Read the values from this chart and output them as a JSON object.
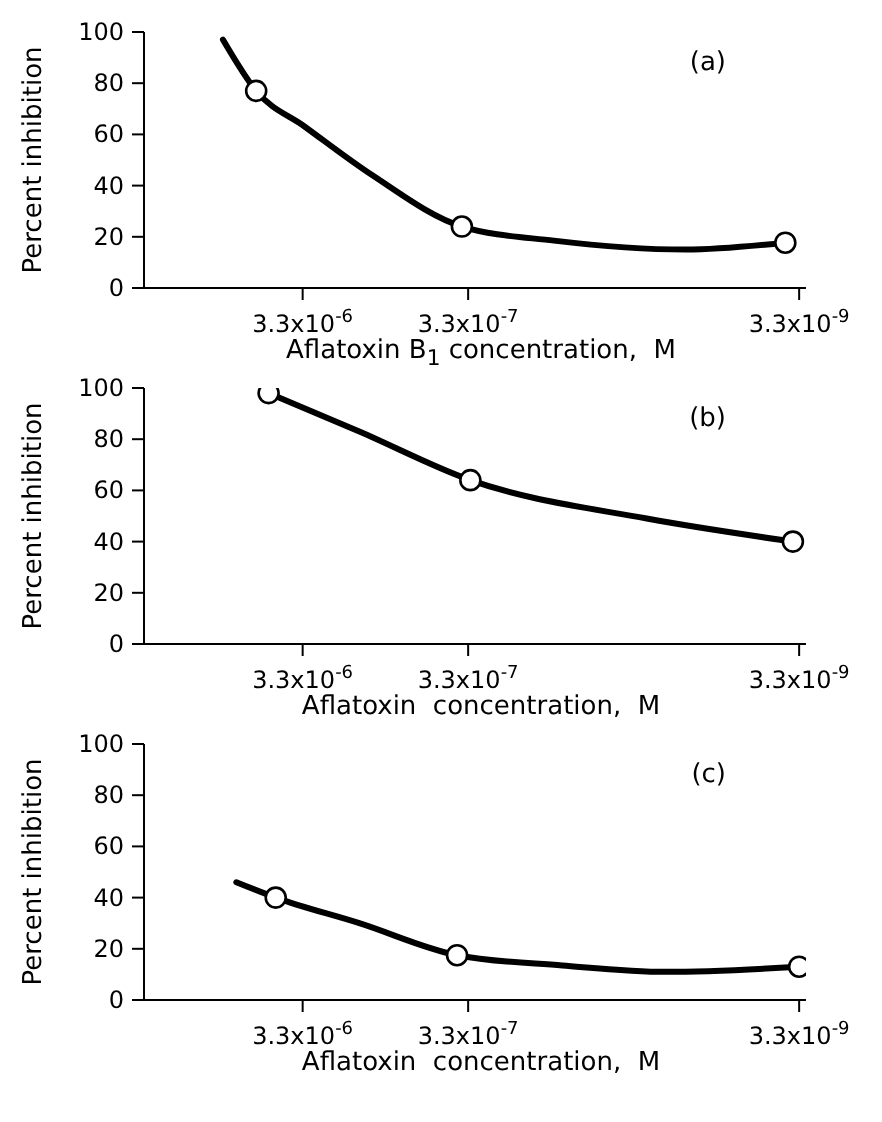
{
  "chart_data": [
    {
      "type": "scatter",
      "ylabel": "Percent inhibition",
      "xlabel": "Aflatoxin B$_{1}$ concentration,  M",
      "annotations": [
        "(a)"
      ],
      "log": "x",
      "xlim": [
        3e-05,
        3e-09
      ],
      "xticks": [
        {
          "value": 3.3e-06,
          "label": "3.3x10$^{-6}$"
        },
        {
          "value": 3.3e-07,
          "label": "3.3x10$^{-7}$"
        },
        {
          "value": 3.3e-09,
          "label": "3.3x10$^{-9}$"
        }
      ],
      "ylim": [
        0,
        100
      ],
      "yticks": [
        0,
        20,
        40,
        60,
        80,
        100
      ],
      "grid": false,
      "series": [
        {
          "type": "line",
          "color": "#000000",
          "marker": "none",
          "x": [
            1e-05,
            6.3e-06,
            3.2e-06,
            1.25e-06,
            3.6e-07,
            1e-07,
            1.6e-08,
            4e-09
          ],
          "values": [
            97,
            77,
            63,
            44,
            24,
            18.5,
            15,
            17.7
          ]
        },
        {
          "color": "#000000",
          "marker": "circle",
          "x": [
            6.3e-06,
            3.6e-07,
            4e-09
          ],
          "values": [
            77,
            24,
            17.7
          ]
        }
      ]
    },
    {
      "type": "scatter",
      "ylabel": "Percent inhibition",
      "xlabel": "Aflatoxin  concentration,  M",
      "annotations": [
        "(b)"
      ],
      "log": "x",
      "xlim": [
        3e-05,
        3e-09
      ],
      "xticks": [
        {
          "value": 3.3e-06,
          "label": "3.3x10$^{-6}$"
        },
        {
          "value": 3.3e-07,
          "label": "3.3x10$^{-7}$"
        },
        {
          "value": 3.3e-09,
          "label": "3.3x10$^{-9}$"
        }
      ],
      "ylim": [
        0,
        100
      ],
      "yticks": [
        0,
        20,
        40,
        60,
        80,
        100
      ],
      "grid": false,
      "series": [
        {
          "type": "line",
          "color": "#000000",
          "marker": "none",
          "x": [
            5.3e-06,
            1.5e-06,
            3.2e-07,
            2.75e-08,
            3.6e-09
          ],
          "values": [
            98,
            83,
            64,
            49,
            40
          ]
        },
        {
          "color": "#000000",
          "marker": "circle",
          "x": [
            5.3e-06,
            3.2e-07,
            3.6e-09
          ],
          "values": [
            98,
            64,
            40
          ]
        }
      ]
    },
    {
      "type": "scatter",
      "ylabel": "Percent inhibition",
      "xlabel": "Aflatoxin  concentration,  M",
      "annotations": [
        "(c)"
      ],
      "log": "x",
      "xlim": [
        3e-05,
        3e-09
      ],
      "xticks": [
        {
          "value": 3.3e-06,
          "label": "3.3x10$^{-6}$"
        },
        {
          "value": 3.3e-07,
          "label": "3.3x10$^{-7}$"
        },
        {
          "value": 3.3e-09,
          "label": "3.3x10$^{-9}$"
        }
      ],
      "ylim": [
        0,
        100
      ],
      "yticks": [
        0,
        20,
        40,
        60,
        80,
        100
      ],
      "grid": false,
      "series": [
        {
          "type": "line",
          "color": "#000000",
          "marker": "none",
          "x": [
            8.3e-06,
            4.8e-06,
            1.5e-06,
            3.85e-07,
            8.9e-08,
            2.1e-08,
            3.3e-09
          ],
          "values": [
            46,
            40,
            30,
            17.5,
            13.5,
            11,
            13
          ]
        },
        {
          "color": "#000000",
          "marker": "circle",
          "x": [
            4.8e-06,
            3.85e-07,
            3.3e-09
          ],
          "values": [
            40,
            17.5,
            13
          ]
        }
      ]
    }
  ]
}
